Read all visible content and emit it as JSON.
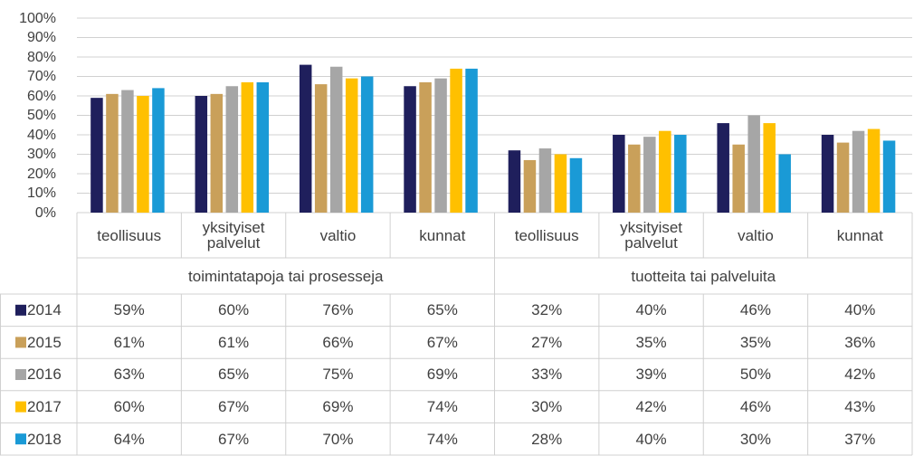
{
  "chart_data": {
    "type": "bar",
    "categories": [
      "teollisuus",
      "yksityiset palvelut",
      "valtio",
      "kunnat",
      "teollisuus",
      "yksityiset palvelut",
      "valtio",
      "kunnat"
    ],
    "groups": [
      "toimintatapoja tai prosesseja",
      "tuotteita tai palveluita"
    ],
    "series": [
      {
        "name": "2014",
        "color": "#1f1f5c",
        "values": [
          59,
          60,
          76,
          65,
          32,
          40,
          46,
          40
        ],
        "value_labels": [
          "59%",
          "60%",
          "76%",
          "65%",
          "32%",
          "40%",
          "46%",
          "40%"
        ]
      },
      {
        "name": "2015",
        "color": "#c9a05a",
        "values": [
          61,
          61,
          66,
          67,
          27,
          35,
          35,
          36
        ],
        "value_labels": [
          "61%",
          "61%",
          "66%",
          "67%",
          "27%",
          "35%",
          "35%",
          "36%"
        ]
      },
      {
        "name": "2016",
        "color": "#a6a6a6",
        "values": [
          63,
          65,
          75,
          69,
          33,
          39,
          50,
          42
        ],
        "value_labels": [
          "63%",
          "65%",
          "75%",
          "69%",
          "33%",
          "39%",
          "50%",
          "42%"
        ]
      },
      {
        "name": "2017",
        "color": "#ffc000",
        "values": [
          60,
          67,
          69,
          74,
          30,
          42,
          46,
          43
        ],
        "value_labels": [
          "60%",
          "67%",
          "69%",
          "74%",
          "30%",
          "42%",
          "46%",
          "43%"
        ]
      },
      {
        "name": "2018",
        "color": "#1a9ad6",
        "values": [
          64,
          67,
          70,
          74,
          28,
          40,
          30,
          37
        ],
        "value_labels": [
          "64%",
          "67%",
          "70%",
          "74%",
          "28%",
          "40%",
          "30%",
          "37%"
        ]
      }
    ],
    "ylim": [
      0,
      100
    ],
    "yticks": [
      {
        "value": 0,
        "label": "0%"
      },
      {
        "value": 10,
        "label": "10%"
      },
      {
        "value": 20,
        "label": "20%"
      },
      {
        "value": 30,
        "label": "30%"
      },
      {
        "value": 40,
        "label": "40%"
      },
      {
        "value": 50,
        "label": "50%"
      },
      {
        "value": 60,
        "label": "60%"
      },
      {
        "value": 70,
        "label": "70%"
      },
      {
        "value": 80,
        "label": "80%"
      },
      {
        "value": 90,
        "label": "90%"
      },
      {
        "value": 100,
        "label": "100%"
      }
    ],
    "grid": true
  }
}
